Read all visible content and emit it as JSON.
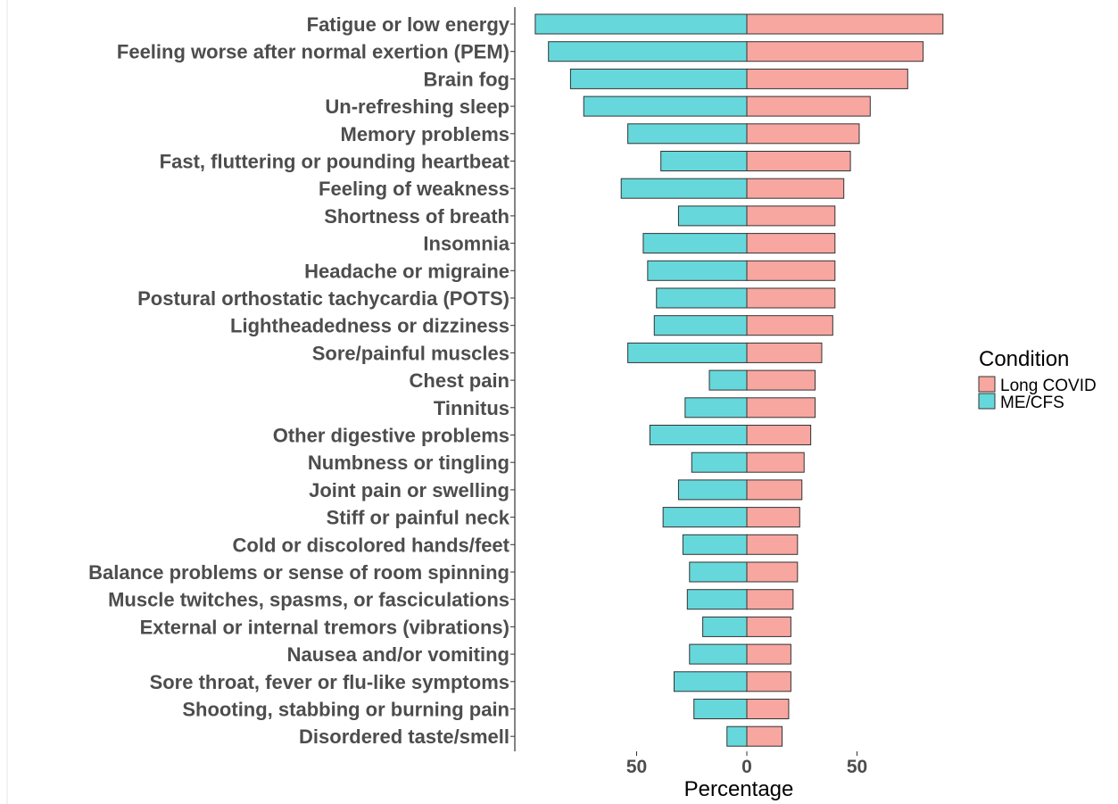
{
  "chart_data": {
    "type": "bar",
    "orientation": "horizontal-diverging",
    "xlabel": "Percentage",
    "x_ticks": [
      -50,
      0,
      50
    ],
    "x_tick_labels": [
      "50",
      "0",
      "50"
    ],
    "xlim": [
      -95,
      90
    ],
    "categories": [
      "Fatigue or low energy",
      "Feeling worse after normal exertion (PEM)",
      "Brain fog",
      "Un-refreshing sleep",
      "Memory problems",
      "Fast, fluttering or pounding heartbeat",
      "Feeling of weakness",
      "Shortness of breath",
      "Insomnia",
      "Headache or migraine",
      "Postural orthostatic tachycardia (POTS)",
      "Lightheadedness or dizziness",
      "Sore/painful muscles",
      "Chest pain",
      "Tinnitus",
      "Other digestive problems",
      "Numbness or tingling",
      "Joint pain or swelling",
      "Stiff or painful neck",
      "Cold or discolored hands/feet",
      "Balance problems or sense of room spinning",
      "Muscle twitches, spasms, or fasciculations",
      "External or internal tremors (vibrations)",
      "Nausea and/or vomiting",
      "Sore throat, fever or flu-like symptoms",
      "Shooting, stabbing or burning pain",
      "Disordered taste/smell"
    ],
    "series": [
      {
        "name": "Long COVID",
        "color": "#F8A6A0",
        "values": [
          89,
          80,
          73,
          56,
          51,
          47,
          44,
          40,
          40,
          40,
          40,
          39,
          34,
          31,
          31,
          29,
          26,
          25,
          24,
          23,
          23,
          21,
          20,
          20,
          20,
          19,
          16
        ]
      },
      {
        "name": "ME/CFS",
        "color": "#66D8DB",
        "values": [
          96,
          90,
          80,
          74,
          54,
          39,
          57,
          31,
          47,
          45,
          41,
          42,
          54,
          17,
          28,
          44,
          25,
          31,
          38,
          29,
          26,
          27,
          20,
          26,
          33,
          24,
          9
        ]
      }
    ],
    "legend": {
      "title": "Condition",
      "position": "right"
    },
    "grid": false
  }
}
